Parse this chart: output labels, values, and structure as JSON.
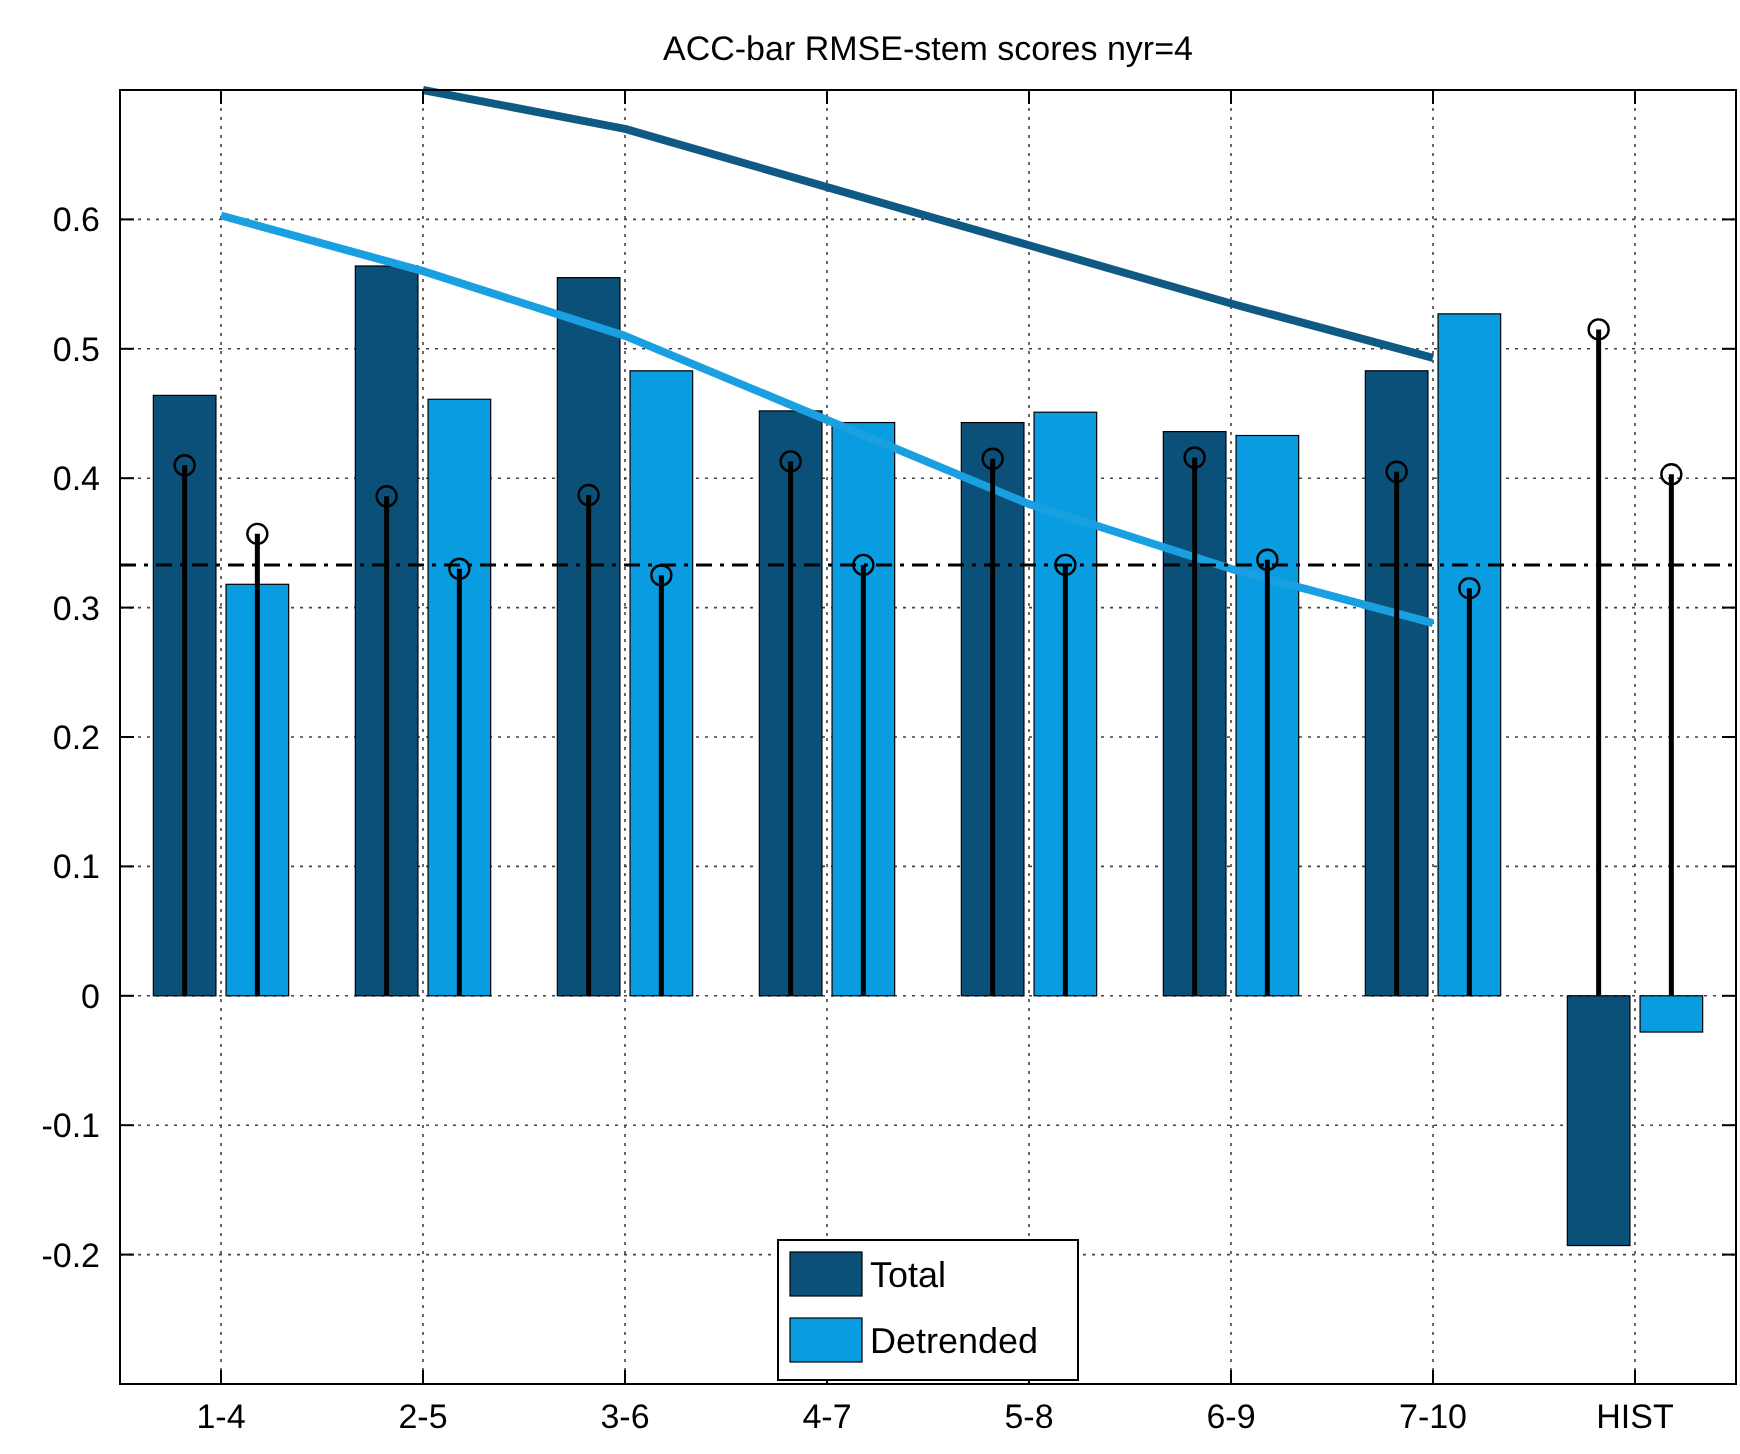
{
  "chart_data": {
    "type": "bar",
    "title": "ACC-bar RMSE-stem scores nyr=4",
    "categories": [
      "1-4",
      "2-5",
      "3-6",
      "4-7",
      "5-8",
      "6-9",
      "7-10",
      "HIST"
    ],
    "series": [
      {
        "name": "Total",
        "color": "#0b5078",
        "values": [
          0.464,
          0.564,
          0.555,
          0.452,
          0.443,
          0.436,
          0.483,
          -0.193
        ]
      },
      {
        "name": "Detrended",
        "color": "#0a9ce0",
        "values": [
          0.318,
          0.461,
          0.483,
          0.443,
          0.451,
          0.433,
          0.527,
          -0.028
        ]
      },
      {
        "type": "lollipop",
        "color": "#000000",
        "values": [
          0.41,
          0.386,
          0.387,
          0.413,
          0.415,
          0.416,
          0.405,
          0.515
        ]
      },
      {
        "type": "lollipop",
        "color": "#000000",
        "values": [
          0.357,
          0.33,
          0.325,
          0.333,
          0.333,
          0.337,
          0.315,
          0.403
        ]
      },
      {
        "type": "line",
        "marker": "none",
        "color": "#0f5a82",
        "values": [
          null,
          0.7,
          0.67,
          0.625,
          0.58,
          0.535,
          0.493,
          null
        ]
      },
      {
        "type": "line",
        "marker": "none",
        "color": "#1aa0e0",
        "values": [
          0.603,
          0.56,
          0.51,
          0.445,
          0.38,
          0.33,
          0.288,
          null
        ]
      }
    ],
    "ylim": [
      -0.3,
      0.7
    ],
    "yticks": [
      -0.2,
      -0.1,
      0,
      0.1,
      0.2,
      0.3,
      0.4,
      0.5,
      0.6
    ],
    "ref_lines": [
      {
        "axis": "y",
        "value": 0.333,
        "color": "#000000",
        "line_style": "dashdot"
      }
    ],
    "grid": true,
    "legend": "bottom",
    "marker": "circle"
  }
}
